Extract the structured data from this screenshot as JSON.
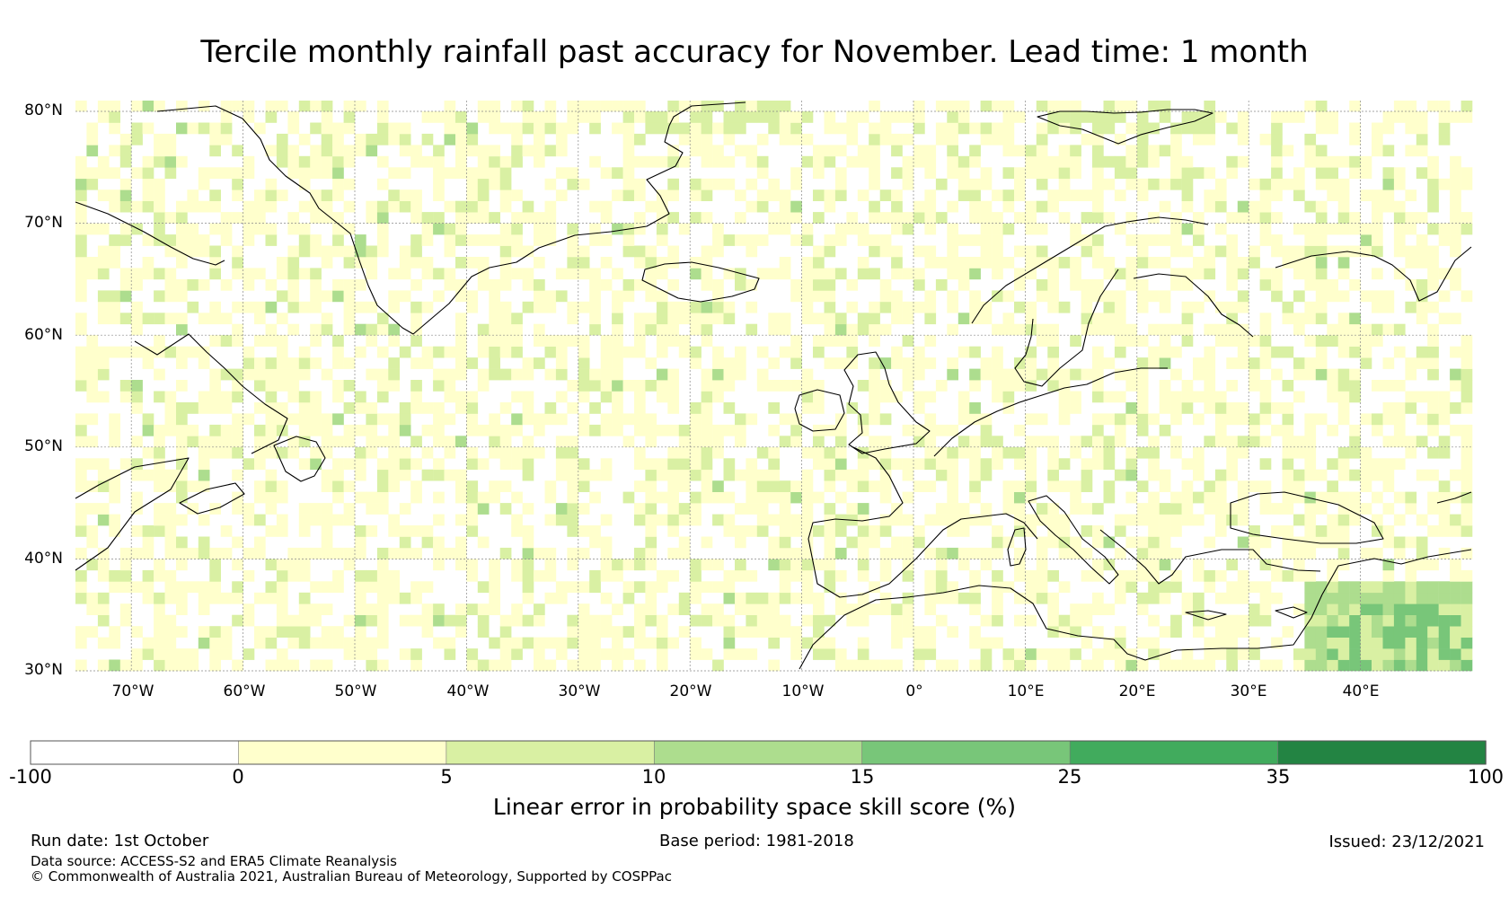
{
  "title": "Tercile monthly rainfall past accuracy for November. Lead time: 1 month",
  "map": {
    "lat_range": [
      30,
      81
    ],
    "lon_range": [
      -75,
      50
    ],
    "lat_labels": [
      "80°N",
      "70°N",
      "60°N",
      "50°N",
      "40°N",
      "30°N"
    ],
    "lat_values": [
      80,
      70,
      60,
      50,
      40,
      30
    ],
    "lon_labels": [
      "70°W",
      "60°W",
      "50°W",
      "40°W",
      "30°W",
      "20°W",
      "10°W",
      "0°",
      "10°E",
      "20°E",
      "30°E",
      "40°E"
    ],
    "lon_values": [
      -70,
      -60,
      -50,
      -40,
      -30,
      -20,
      -10,
      0,
      10,
      20,
      30,
      40
    ]
  },
  "colorbar": {
    "ticks": [
      "-100",
      "0",
      "5",
      "10",
      "15",
      "25",
      "35",
      "100"
    ],
    "colors": [
      "#ffffff",
      "#ffffcc",
      "#d9f0a3",
      "#addd8e",
      "#78c679",
      "#41ab5d",
      "#238443"
    ],
    "label": "Linear error in probability space skill score (%)"
  },
  "footer": {
    "run_date": "Run date: 1st October",
    "base_period": "Base period: 1981-2018",
    "issued": "Issued: 23/12/2021",
    "data_source": "Data source: ACCESS-S2 and ERA5 Climate Reanalysis",
    "copyright": "© Commonwealth of Australia 2021, Australian Bureau of Meteorology, Supported by COSPPac"
  }
}
